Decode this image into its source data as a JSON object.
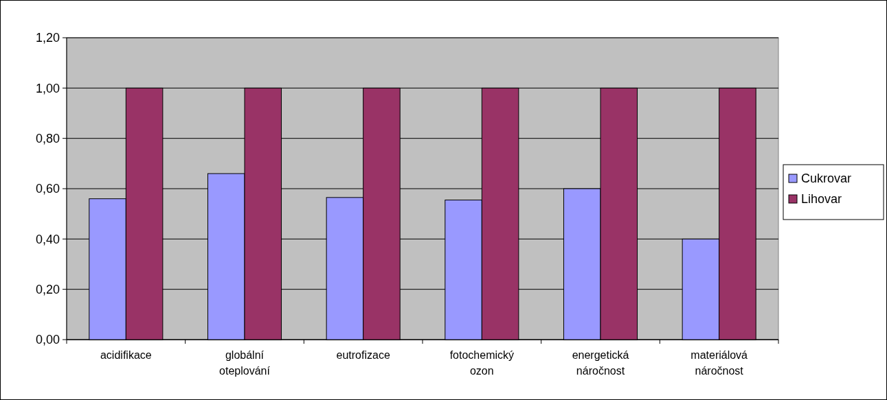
{
  "chart_data": {
    "type": "bar",
    "categories": [
      "acidifikace",
      "globální oteplování",
      "eutrofizace",
      "fotochemický ozon",
      "energetická náročnost",
      "materiálová náročnost"
    ],
    "series": [
      {
        "name": "Cukrovar",
        "color": "#9999ff",
        "values": [
          0.56,
          0.66,
          0.565,
          0.555,
          0.6,
          0.4
        ]
      },
      {
        "name": "Lihovar",
        "color": "#993366",
        "values": [
          1,
          1,
          1,
          1,
          1,
          1
        ]
      }
    ],
    "ylim": [
      0,
      1.2
    ],
    "yticks": [
      {
        "value": 0,
        "label": "0,00"
      },
      {
        "value": 0.2,
        "label": "0,20"
      },
      {
        "value": 0.4,
        "label": "0,40"
      },
      {
        "value": 0.6,
        "label": "0,60"
      },
      {
        "value": 0.8,
        "label": "0,80"
      },
      {
        "value": 1,
        "label": "1,00"
      },
      {
        "value": 1.2,
        "label": "1,20"
      }
    ],
    "grid": "y",
    "legend": "right"
  }
}
